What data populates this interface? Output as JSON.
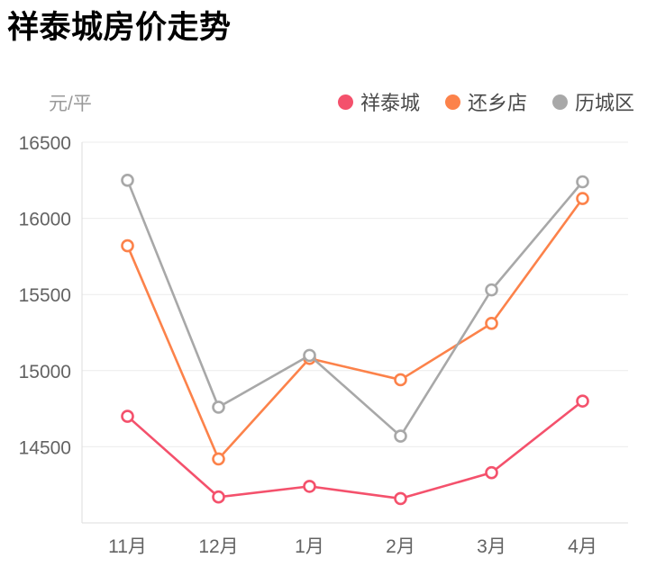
{
  "page": {
    "title": "祥泰城房价走势",
    "unit_label": "元/平"
  },
  "chart_data": {
    "type": "line",
    "title": "祥泰城房价走势",
    "ylabel": "元/平",
    "categories": [
      "11月",
      "12月",
      "1月",
      "2月",
      "3月",
      "4月"
    ],
    "series": [
      {
        "name": "祥泰城",
        "color": "#F4516C",
        "values": [
          14700,
          14170,
          14240,
          14160,
          14330,
          14800
        ]
      },
      {
        "name": "还乡店",
        "color": "#FC824A",
        "values": [
          15820,
          14420,
          15080,
          14940,
          15310,
          16130
        ]
      },
      {
        "name": "历城区",
        "color": "#A8A8A8",
        "values": [
          16250,
          14760,
          15100,
          14570,
          15530,
          16240
        ]
      }
    ],
    "ylim": [
      14000,
      16500
    ],
    "ytick_step": 500,
    "ytick_labels": [
      16500,
      16000,
      15500,
      15000,
      14500
    ],
    "grid": true,
    "legend_position": "top-right",
    "marker": "hollow-circle",
    "axis_color": "#DCDCDC",
    "grid_color": "#ECECEC",
    "tick_text_color": "#636363"
  }
}
